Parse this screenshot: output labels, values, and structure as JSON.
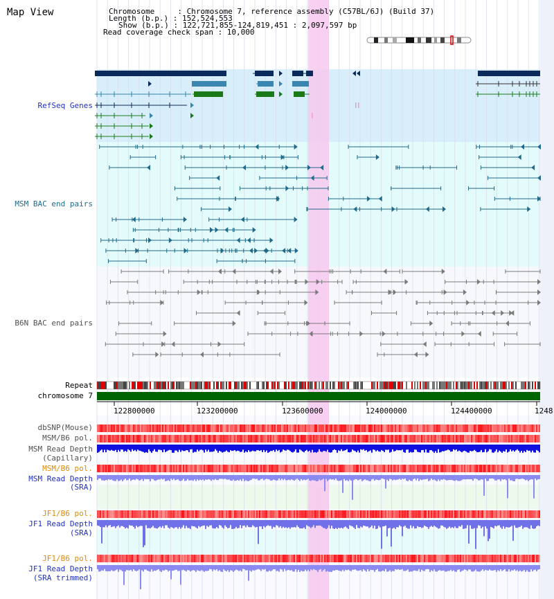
{
  "view_title": "Map View",
  "info": {
    "chromosome": "Chromosome     : Chromosome 7, reference assembly (C57BL/6J) (Build 37)",
    "length": "Length (b.p.) : 152,524,553",
    "show": "Show (b.p.) : 122,721,855-124,819,451 : 2,097,597 bp",
    "coverage": "Read coverage check span : 10,000"
  },
  "tracks": {
    "refseq": "RefSeq Genes",
    "msm_bac": "MSM BAC end pairs",
    "b6n_bac": "B6N BAC end pairs",
    "repeat": "Repeat",
    "chromosome": "chromosome 7",
    "dbsnp": "dbSNP(Mouse)",
    "msm_b6_pol_1": "MSM/B6 pol.",
    "msm_depth_cap_1": "MSM Read Depth",
    "msm_depth_cap_2": "(Capillary)",
    "msm_b6_pol_2": "MSM/B6 pol.",
    "msm_depth_sra_1": "MSM Read Depth",
    "msm_depth_sra_2": "(SRA)",
    "jf1_b6_pol_1": "JF1/B6 pol.",
    "jf1_depth_sra_1": "JF1 Read Depth",
    "jf1_depth_sra_2": "(SRA)",
    "jf1_b6_pol_2": "JF1/B6 pol.",
    "jf1_depth_trim_1": "JF1 Read Depth",
    "jf1_depth_trim_2": "(SRA trimmed)"
  },
  "axis": {
    "ticks": [
      "122800000",
      "123200000",
      "123600000",
      "124000000",
      "124400000",
      "1248"
    ]
  },
  "colors": {
    "refseq_label": "#2030c0",
    "msm_bac_label": "#1f6a8a",
    "b6n_bac_label": "#505050",
    "pol_label_orange": "#e08a00",
    "depth_label_blue": "#2030c0",
    "highlight": "#f7c8ef",
    "refseq_bg": "#d8eefa",
    "msm_bg": "#e4fbfb",
    "chromosome_bar": "#006400"
  }
}
